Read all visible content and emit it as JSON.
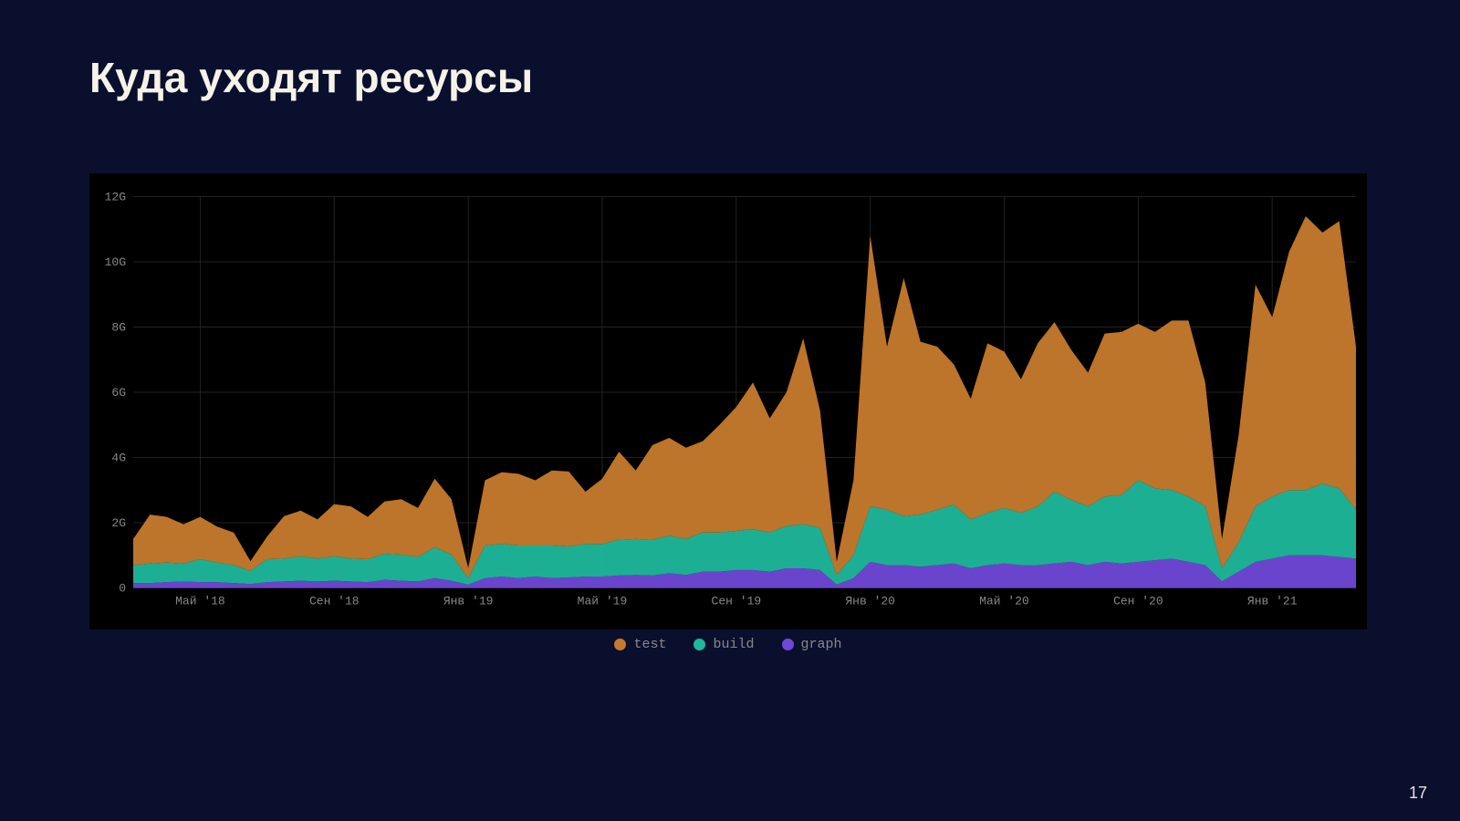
{
  "slide": {
    "title": "Куда уходят ресурсы",
    "page_number": "17",
    "background_color": "#0b0f2e",
    "title_color": "#f5f2e8",
    "title_fontsize": 46
  },
  "chart": {
    "type": "area",
    "stacked": true,
    "background_color": "#000000",
    "grid_color": "#222222",
    "axis_text_color": "#888888",
    "axis_fontsize": 13,
    "ylim": [
      0,
      12
    ],
    "ytick_step": 2,
    "y_unit_suffix": "G",
    "y_ticks": [
      {
        "value": 0,
        "label": "0"
      },
      {
        "value": 2,
        "label": "2G"
      },
      {
        "value": 4,
        "label": "4G"
      },
      {
        "value": 6,
        "label": "6G"
      },
      {
        "value": 8,
        "label": "8G"
      },
      {
        "value": 10,
        "label": "10G"
      },
      {
        "value": 12,
        "label": "12G"
      }
    ],
    "x_ticks": [
      {
        "index": 4,
        "label": "Май '18"
      },
      {
        "index": 12,
        "label": "Сен '18"
      },
      {
        "index": 20,
        "label": "Янв '19"
      },
      {
        "index": 28,
        "label": "Май '19"
      },
      {
        "index": 36,
        "label": "Сен '19"
      },
      {
        "index": 44,
        "label": "Янв '20"
      },
      {
        "index": 52,
        "label": "Май '20"
      },
      {
        "index": 60,
        "label": "Сен '20"
      },
      {
        "index": 68,
        "label": "Янв '21"
      }
    ],
    "x_count": 74,
    "series": [
      {
        "name": "graph",
        "color": "#7048d8",
        "values": [
          0.15,
          0.15,
          0.18,
          0.2,
          0.18,
          0.18,
          0.15,
          0.12,
          0.18,
          0.2,
          0.22,
          0.2,
          0.22,
          0.2,
          0.18,
          0.25,
          0.22,
          0.2,
          0.3,
          0.22,
          0.1,
          0.3,
          0.35,
          0.3,
          0.35,
          0.3,
          0.32,
          0.35,
          0.35,
          0.38,
          0.4,
          0.38,
          0.45,
          0.4,
          0.5,
          0.5,
          0.55,
          0.55,
          0.5,
          0.6,
          0.6,
          0.55,
          0.1,
          0.3,
          0.8,
          0.7,
          0.7,
          0.65,
          0.7,
          0.75,
          0.6,
          0.7,
          0.75,
          0.7,
          0.7,
          0.75,
          0.8,
          0.7,
          0.8,
          0.75,
          0.8,
          0.85,
          0.9,
          0.8,
          0.7,
          0.2,
          0.5,
          0.8,
          0.9,
          1.0,
          1.0,
          1.0,
          0.95,
          0.9
        ]
      },
      {
        "name": "build",
        "color": "#1fb89c",
        "values": [
          0.55,
          0.6,
          0.6,
          0.55,
          0.7,
          0.6,
          0.55,
          0.4,
          0.7,
          0.7,
          0.75,
          0.7,
          0.75,
          0.7,
          0.7,
          0.8,
          0.8,
          0.75,
          0.95,
          0.8,
          0.2,
          1.0,
          1.0,
          1.0,
          0.95,
          1.0,
          0.95,
          1.0,
          1.0,
          1.1,
          1.1,
          1.1,
          1.15,
          1.1,
          1.2,
          1.2,
          1.2,
          1.25,
          1.2,
          1.3,
          1.35,
          1.3,
          0.3,
          0.7,
          1.7,
          1.7,
          1.5,
          1.6,
          1.7,
          1.8,
          1.5,
          1.6,
          1.7,
          1.6,
          1.8,
          2.2,
          1.9,
          1.8,
          2.0,
          2.1,
          2.5,
          2.2,
          2.1,
          2.0,
          1.8,
          0.4,
          0.9,
          1.7,
          1.9,
          2.0,
          2.0,
          2.2,
          2.1,
          1.5
        ]
      },
      {
        "name": "test",
        "color": "#c77a2d",
        "values": [
          0.8,
          1.5,
          1.4,
          1.2,
          1.3,
          1.1,
          1.0,
          0.3,
          0.7,
          1.3,
          1.4,
          1.2,
          1.6,
          1.6,
          1.3,
          1.6,
          1.7,
          1.5,
          2.1,
          1.7,
          0.3,
          2.0,
          2.2,
          2.2,
          2.0,
          2.3,
          2.3,
          1.6,
          2.0,
          2.7,
          2.1,
          2.9,
          3.0,
          2.8,
          2.8,
          3.3,
          3.8,
          4.5,
          3.5,
          4.1,
          5.7,
          3.6,
          0.4,
          2.3,
          8.3,
          5.0,
          7.3,
          5.3,
          5.0,
          4.3,
          3.7,
          5.2,
          4.8,
          4.1,
          5.0,
          5.2,
          4.6,
          4.1,
          5.0,
          5.0,
          4.8,
          4.8,
          5.2,
          5.4,
          3.8,
          0.9,
          3.3,
          6.8,
          5.5,
          7.3,
          8.4,
          7.7,
          8.2,
          5.0
        ]
      }
    ],
    "legend": [
      {
        "label": "test",
        "color": "#c77a2d"
      },
      {
        "label": "build",
        "color": "#1fb89c"
      },
      {
        "label": "graph",
        "color": "#7048d8"
      }
    ]
  }
}
